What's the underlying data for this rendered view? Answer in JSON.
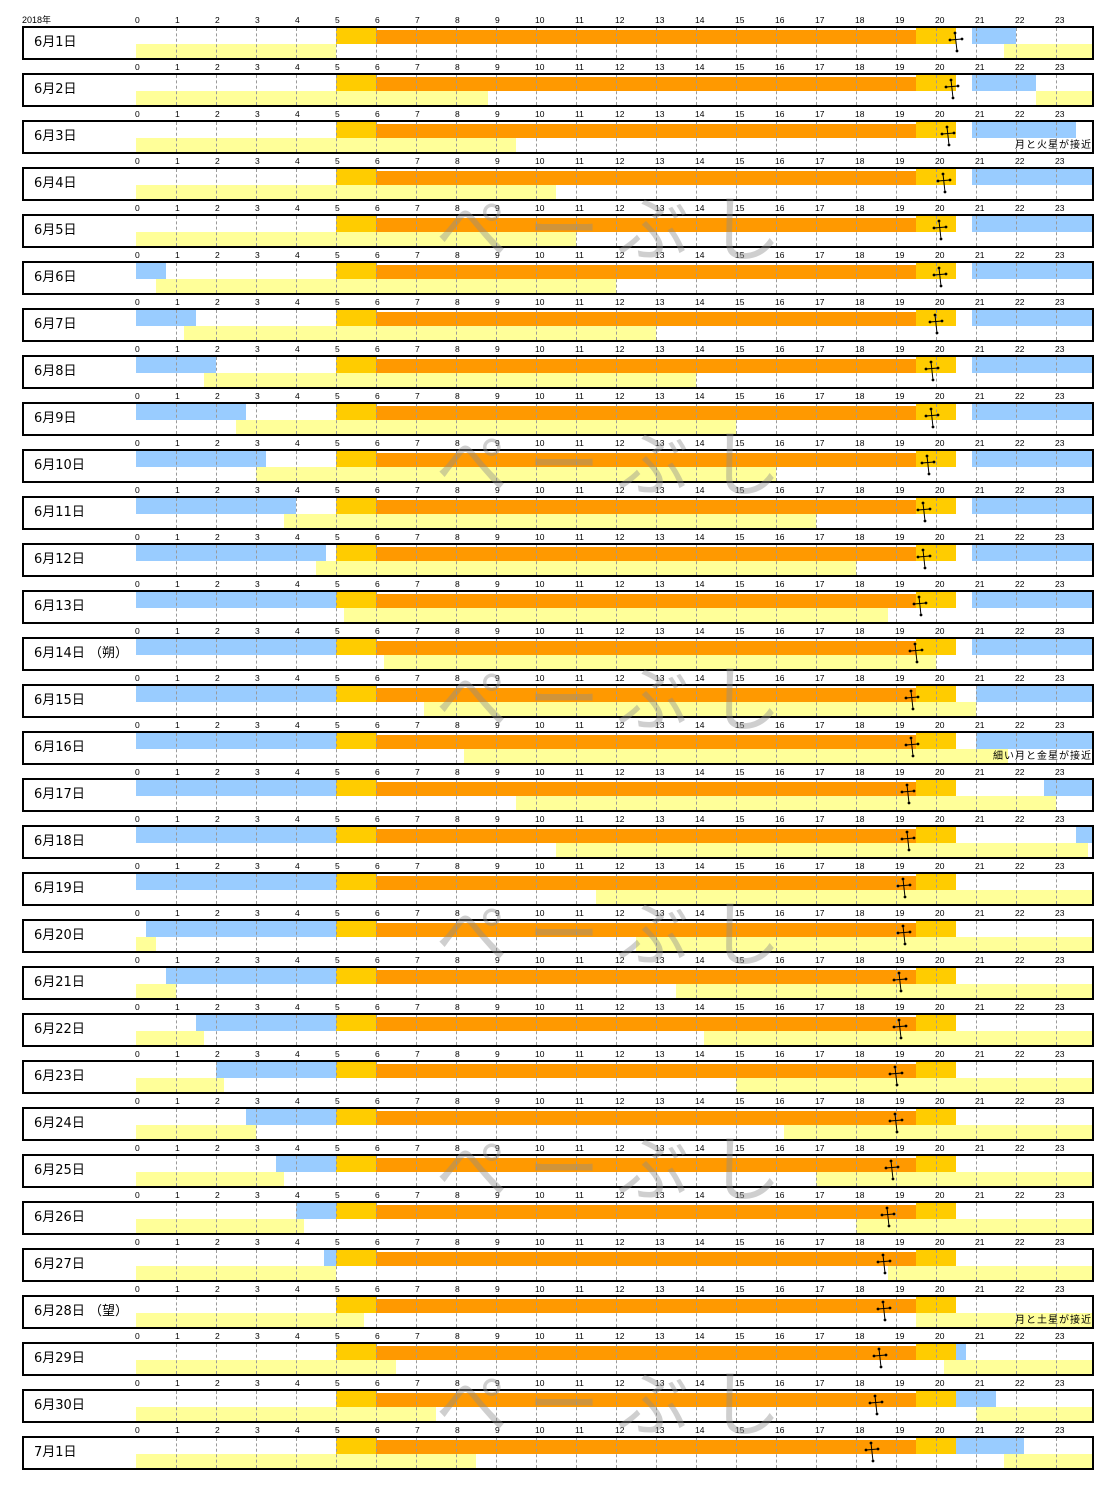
{
  "colors": {
    "civil_twilight": "#ffcc00",
    "daylight": "#ff9900",
    "darkness": "#99ccff",
    "moon_up": "#ffff99"
  },
  "watermark": "ぺーぶし",
  "chart_data": {
    "type": "table",
    "title": "",
    "year_label": "2018年",
    "x_range": [
      0,
      24
    ],
    "x_ticks": [
      "0",
      "1",
      "2",
      "3",
      "4",
      "5",
      "6",
      "7",
      "8",
      "9",
      "10",
      "11",
      "12",
      "13",
      "14",
      "15",
      "16",
      "17",
      "18",
      "19",
      "20",
      "21",
      "22",
      "23"
    ],
    "series_meaning": {
      "civil_twilight": "paired segments before sunrise and after sunset (hours)",
      "daylight": "sunrise to sunset (hours)",
      "darkness": "astronomical darkness segments (hours)",
      "moon_up": "moon above horizon segments (hours)",
      "moon_mark": "moon mark hour"
    },
    "days": [
      {
        "label": "6月1日",
        "twilight": [
          [
            5.0,
            6.0
          ],
          [
            19.5,
            20.5
          ]
        ],
        "daylight": [
          6.0,
          19.5
        ],
        "dark": [
          [
            20.9,
            22.0
          ]
        ],
        "moon": [
          [
            0,
            5.0
          ],
          [
            21.7,
            24
          ]
        ],
        "moon_mark": 20.5,
        "note": ""
      },
      {
        "label": "6月2日",
        "twilight": [
          [
            5.0,
            6.0
          ],
          [
            19.5,
            20.5
          ]
        ],
        "daylight": [
          6.0,
          19.5
        ],
        "dark": [
          [
            20.9,
            22.5
          ]
        ],
        "moon": [
          [
            0,
            8.8
          ],
          [
            22.5,
            24
          ]
        ],
        "moon_mark": 20.4,
        "note": ""
      },
      {
        "label": "6月3日",
        "twilight": [
          [
            5.0,
            6.0
          ],
          [
            19.5,
            20.5
          ]
        ],
        "daylight": [
          6.0,
          19.5
        ],
        "dark": [
          [
            20.9,
            23.5
          ]
        ],
        "moon": [
          [
            0,
            9.5
          ]
        ],
        "moon_mark": 20.3,
        "note": "月と火星が接近"
      },
      {
        "label": "6月4日",
        "twilight": [
          [
            5.0,
            6.0
          ],
          [
            19.5,
            20.5
          ]
        ],
        "daylight": [
          6.0,
          19.5
        ],
        "dark": [
          [
            20.9,
            24
          ]
        ],
        "moon": [
          [
            0,
            10.5
          ]
        ],
        "moon_mark": 20.2,
        "note": ""
      },
      {
        "label": "6月5日",
        "twilight": [
          [
            5.0,
            6.0
          ],
          [
            19.5,
            20.5
          ]
        ],
        "daylight": [
          6.0,
          19.5
        ],
        "dark": [
          [
            20.9,
            24
          ]
        ],
        "moon": [
          [
            0,
            11.0
          ]
        ],
        "moon_mark": 20.1,
        "note": ""
      },
      {
        "label": "6月6日",
        "twilight": [
          [
            5.0,
            6.0
          ],
          [
            19.5,
            20.5
          ]
        ],
        "daylight": [
          6.0,
          19.5
        ],
        "dark": [
          [
            0,
            0.75
          ],
          [
            20.9,
            24
          ]
        ],
        "moon": [
          [
            0.5,
            12.0
          ]
        ],
        "moon_mark": 20.1,
        "note": ""
      },
      {
        "label": "6月7日",
        "twilight": [
          [
            5.0,
            6.0
          ],
          [
            19.5,
            20.5
          ]
        ],
        "daylight": [
          6.0,
          19.5
        ],
        "dark": [
          [
            0,
            1.5
          ],
          [
            20.9,
            24
          ]
        ],
        "moon": [
          [
            1.2,
            13.0
          ]
        ],
        "moon_mark": 20.0,
        "note": ""
      },
      {
        "label": "6月8日",
        "twilight": [
          [
            5.0,
            6.0
          ],
          [
            19.5,
            20.5
          ]
        ],
        "daylight": [
          6.0,
          19.5
        ],
        "dark": [
          [
            0,
            2.0
          ],
          [
            20.9,
            24
          ]
        ],
        "moon": [
          [
            1.7,
            14.0
          ]
        ],
        "moon_mark": 19.9,
        "note": ""
      },
      {
        "label": "6月9日",
        "twilight": [
          [
            5.0,
            6.0
          ],
          [
            19.5,
            20.5
          ]
        ],
        "daylight": [
          6.0,
          19.5
        ],
        "dark": [
          [
            0,
            2.75
          ],
          [
            20.9,
            24
          ]
        ],
        "moon": [
          [
            2.5,
            15.0
          ]
        ],
        "moon_mark": 19.9,
        "note": ""
      },
      {
        "label": "6月10日",
        "twilight": [
          [
            5.0,
            6.0
          ],
          [
            19.5,
            20.5
          ]
        ],
        "daylight": [
          6.0,
          19.5
        ],
        "dark": [
          [
            0,
            3.25
          ],
          [
            20.9,
            24
          ]
        ],
        "moon": [
          [
            3.0,
            16.0
          ]
        ],
        "moon_mark": 19.8,
        "note": ""
      },
      {
        "label": "6月11日",
        "twilight": [
          [
            5.0,
            6.0
          ],
          [
            19.5,
            20.5
          ]
        ],
        "daylight": [
          6.0,
          19.5
        ],
        "dark": [
          [
            0,
            4.0
          ],
          [
            20.9,
            24
          ]
        ],
        "moon": [
          [
            3.7,
            17.0
          ]
        ],
        "moon_mark": 19.7,
        "note": ""
      },
      {
        "label": "6月12日",
        "twilight": [
          [
            5.0,
            6.0
          ],
          [
            19.5,
            20.5
          ]
        ],
        "daylight": [
          6.0,
          19.5
        ],
        "dark": [
          [
            0,
            4.75
          ],
          [
            20.9,
            24
          ]
        ],
        "moon": [
          [
            4.5,
            18.0
          ]
        ],
        "moon_mark": 19.7,
        "note": ""
      },
      {
        "label": "6月13日",
        "twilight": [
          [
            5.0,
            6.0
          ],
          [
            19.5,
            20.5
          ]
        ],
        "daylight": [
          6.0,
          19.5
        ],
        "dark": [
          [
            0,
            5.0
          ],
          [
            20.9,
            24
          ]
        ],
        "moon": [
          [
            5.2,
            18.8
          ]
        ],
        "moon_mark": 19.6,
        "note": ""
      },
      {
        "label": "6月14日 （朔）",
        "twilight": [
          [
            5.0,
            6.0
          ],
          [
            19.5,
            20.5
          ]
        ],
        "daylight": [
          6.0,
          19.5
        ],
        "dark": [
          [
            0,
            5.0
          ],
          [
            20.9,
            24
          ]
        ],
        "moon": [
          [
            6.2,
            20.0
          ]
        ],
        "moon_mark": 19.5,
        "note": ""
      },
      {
        "label": "6月15日",
        "twilight": [
          [
            5.0,
            6.0
          ],
          [
            19.5,
            20.5
          ]
        ],
        "daylight": [
          6.0,
          19.5
        ],
        "dark": [
          [
            0,
            5.0
          ],
          [
            21.0,
            24
          ]
        ],
        "moon": [
          [
            7.2,
            21.0
          ]
        ],
        "moon_mark": 19.4,
        "note": ""
      },
      {
        "label": "6月16日",
        "twilight": [
          [
            5.0,
            6.0
          ],
          [
            19.5,
            20.5
          ]
        ],
        "daylight": [
          6.0,
          19.5
        ],
        "dark": [
          [
            0,
            5.0
          ],
          [
            21.0,
            24
          ]
        ],
        "moon": [
          [
            8.2,
            21.8
          ]
        ],
        "moon_mark": 19.4,
        "note": "細い月と金星が接近"
      },
      {
        "label": "6月17日",
        "twilight": [
          [
            5.0,
            6.0
          ],
          [
            19.5,
            20.5
          ]
        ],
        "daylight": [
          6.0,
          19.5
        ],
        "dark": [
          [
            0,
            5.0
          ],
          [
            22.7,
            24
          ]
        ],
        "moon": [
          [
            9.5,
            23.0
          ]
        ],
        "moon_mark": 19.3,
        "note": ""
      },
      {
        "label": "6月18日",
        "twilight": [
          [
            5.0,
            6.0
          ],
          [
            19.5,
            20.5
          ]
        ],
        "daylight": [
          6.0,
          19.5
        ],
        "dark": [
          [
            0,
            5.0
          ],
          [
            23.5,
            24
          ]
        ],
        "moon": [
          [
            10.5,
            23.8
          ]
        ],
        "moon_mark": 19.3,
        "note": ""
      },
      {
        "label": "6月19日",
        "twilight": [
          [
            5.0,
            6.0
          ],
          [
            19.5,
            20.5
          ]
        ],
        "daylight": [
          6.0,
          19.5
        ],
        "dark": [
          [
            0,
            5.0
          ]
        ],
        "moon": [
          [
            11.5,
            24
          ]
        ],
        "moon_mark": 19.2,
        "note": ""
      },
      {
        "label": "6月20日",
        "twilight": [
          [
            5.0,
            6.0
          ],
          [
            19.5,
            20.5
          ]
        ],
        "daylight": [
          6.0,
          19.5
        ],
        "dark": [
          [
            0.25,
            5.0
          ]
        ],
        "moon": [
          [
            0,
            0.5
          ],
          [
            12.5,
            24
          ]
        ],
        "moon_mark": 19.2,
        "note": ""
      },
      {
        "label": "6月21日",
        "twilight": [
          [
            5.0,
            6.0
          ],
          [
            19.5,
            20.5
          ]
        ],
        "daylight": [
          6.0,
          19.5
        ],
        "dark": [
          [
            0.75,
            5.0
          ]
        ],
        "moon": [
          [
            0,
            1.0
          ],
          [
            13.5,
            24
          ]
        ],
        "moon_mark": 19.1,
        "note": ""
      },
      {
        "label": "6月22日",
        "twilight": [
          [
            5.0,
            6.0
          ],
          [
            19.5,
            20.5
          ]
        ],
        "daylight": [
          6.0,
          19.5
        ],
        "dark": [
          [
            1.5,
            5.0
          ]
        ],
        "moon": [
          [
            0,
            1.7
          ],
          [
            14.2,
            24
          ]
        ],
        "moon_mark": 19.1,
        "note": ""
      },
      {
        "label": "6月23日",
        "twilight": [
          [
            5.0,
            6.0
          ],
          [
            19.5,
            20.5
          ]
        ],
        "daylight": [
          6.0,
          19.5
        ],
        "dark": [
          [
            2.0,
            5.0
          ]
        ],
        "moon": [
          [
            0,
            2.2
          ],
          [
            15.0,
            24
          ]
        ],
        "moon_mark": 19.0,
        "note": ""
      },
      {
        "label": "6月24日",
        "twilight": [
          [
            5.0,
            6.0
          ],
          [
            19.5,
            20.5
          ]
        ],
        "daylight": [
          6.0,
          19.5
        ],
        "dark": [
          [
            2.75,
            5.0
          ]
        ],
        "moon": [
          [
            0,
            3.0
          ],
          [
            16.2,
            24
          ]
        ],
        "moon_mark": 19.0,
        "note": ""
      },
      {
        "label": "6月25日",
        "twilight": [
          [
            5.0,
            6.0
          ],
          [
            19.5,
            20.5
          ]
        ],
        "daylight": [
          6.0,
          19.5
        ],
        "dark": [
          [
            3.5,
            5.0
          ]
        ],
        "moon": [
          [
            0,
            3.7
          ],
          [
            17.0,
            24
          ]
        ],
        "moon_mark": 18.9,
        "note": ""
      },
      {
        "label": "6月26日",
        "twilight": [
          [
            5.0,
            6.0
          ],
          [
            19.5,
            20.5
          ]
        ],
        "daylight": [
          6.0,
          19.5
        ],
        "dark": [
          [
            4.0,
            5.0
          ]
        ],
        "moon": [
          [
            0,
            4.2
          ],
          [
            18.0,
            24
          ]
        ],
        "moon_mark": 18.8,
        "note": ""
      },
      {
        "label": "6月27日",
        "twilight": [
          [
            5.0,
            6.0
          ],
          [
            19.5,
            20.5
          ]
        ],
        "daylight": [
          6.0,
          19.5
        ],
        "dark": [
          [
            4.7,
            5.0
          ]
        ],
        "moon": [
          [
            0,
            5.0
          ],
          [
            18.8,
            24
          ]
        ],
        "moon_mark": 18.7,
        "note": ""
      },
      {
        "label": "6月28日 （望）",
        "twilight": [
          [
            5.0,
            6.0
          ],
          [
            19.5,
            20.5
          ]
        ],
        "daylight": [
          6.0,
          19.5
        ],
        "dark": [],
        "moon": [
          [
            0,
            5.7
          ],
          [
            19.5,
            24
          ]
        ],
        "moon_mark": 18.7,
        "note": "月と土星が接近"
      },
      {
        "label": "6月29日",
        "twilight": [
          [
            5.0,
            6.0
          ],
          [
            19.5,
            20.5
          ]
        ],
        "daylight": [
          6.0,
          19.5
        ],
        "dark": [
          [
            20.5,
            20.75
          ]
        ],
        "moon": [
          [
            0,
            6.5
          ],
          [
            20.2,
            24
          ]
        ],
        "moon_mark": 18.6,
        "note": ""
      },
      {
        "label": "6月30日",
        "twilight": [
          [
            5.0,
            6.0
          ],
          [
            19.5,
            20.5
          ]
        ],
        "daylight": [
          6.0,
          19.5
        ],
        "dark": [
          [
            20.5,
            21.5
          ]
        ],
        "moon": [
          [
            0,
            7.5
          ],
          [
            21.0,
            24
          ]
        ],
        "moon_mark": 18.5,
        "note": ""
      },
      {
        "label": "7月1日",
        "twilight": [
          [
            5.0,
            6.0
          ],
          [
            19.5,
            20.5
          ]
        ],
        "daylight": [
          6.0,
          19.5
        ],
        "dark": [
          [
            20.5,
            22.2
          ]
        ],
        "moon": [
          [
            0,
            8.5
          ],
          [
            21.7,
            24
          ]
        ],
        "moon_mark": 18.4,
        "note": ""
      }
    ]
  }
}
